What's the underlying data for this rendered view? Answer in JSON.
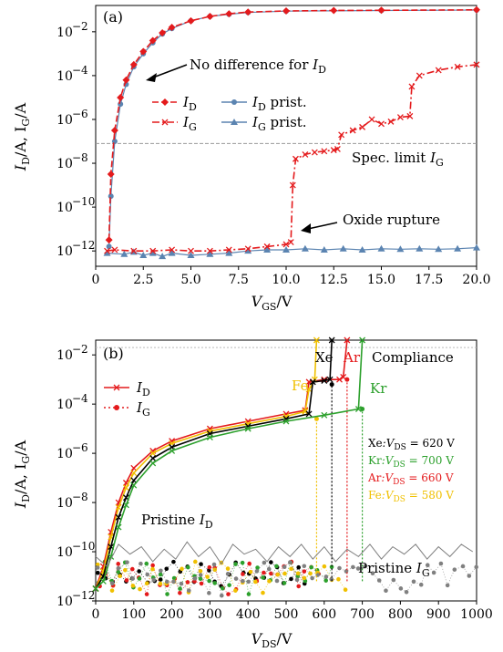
{
  "chart_data": [
    {
      "type": "line",
      "panel_label": "(a)",
      "ylog": true,
      "xlabel_main": "V",
      "xlabel_sub": "GS",
      "xlabel_unit": "/V",
      "ylabel_a": "I",
      "ylabel_a_sub": "D",
      "ylabel_b": "/A, I",
      "ylabel_b_sub": "G",
      "ylabel_c": "/A",
      "xlim": [
        0,
        20
      ],
      "ylim_exp": [
        -12.7,
        -0.8
      ],
      "xticks": [
        "0",
        "2.5",
        "5.0",
        "7.5",
        "10.0",
        "12.5",
        "15.0",
        "17.5",
        "20.0"
      ],
      "xtick_values": [
        0,
        2.5,
        5,
        7.5,
        10,
        12.5,
        15,
        17.5,
        20
      ],
      "ytick_exps": [
        -12,
        -10,
        -8,
        -6,
        -4,
        -2
      ],
      "ytick_labels": [
        "10",
        "10",
        "10",
        "10",
        "10",
        "10"
      ],
      "ytick_sups": [
        "−12",
        "−10",
        "−8",
        "−6",
        "−4",
        "−2"
      ],
      "legend": [
        {
          "main": "I",
          "sub": "D",
          "rest": "",
          "color": "#e41a1c",
          "marker": "diamond",
          "dash": "dash"
        },
        {
          "main": "I",
          "sub": "G",
          "rest": "",
          "color": "#e41a1c",
          "marker": "x",
          "dash": "dashdot"
        },
        {
          "main": "I",
          "sub": "D",
          "rest": " prist.",
          "color": "#5b84b1",
          "marker": "circle",
          "dash": "solid"
        },
        {
          "main": "I",
          "sub": "G",
          "rest": " prist.",
          "color": "#5b84b1",
          "marker": "triangle",
          "dash": "solid"
        }
      ],
      "annotations": {
        "no_diff": "No difference for ",
        "no_diff_i": "I",
        "no_diff_sub": "D",
        "spec": "Spec. limit ",
        "spec_i": "I",
        "spec_sub": "G",
        "oxide": "Oxide rupture"
      },
      "spec_limit_exp": -7.1,
      "series": [
        {
          "name": "ID",
          "log10_y": [
            [
              0.7,
              -11.5
            ],
            [
              0.8,
              -8.5
            ],
            [
              1.0,
              -6.5
            ],
            [
              1.3,
              -5.0
            ],
            [
              1.6,
              -4.2
            ],
            [
              2.0,
              -3.5
            ],
            [
              2.5,
              -2.9
            ],
            [
              3.0,
              -2.4
            ],
            [
              3.5,
              -2.05
            ],
            [
              4.0,
              -1.8
            ],
            [
              5.0,
              -1.5
            ],
            [
              6.0,
              -1.3
            ],
            [
              7.0,
              -1.18
            ],
            [
              8.0,
              -1.1
            ],
            [
              10.0,
              -1.05
            ],
            [
              12.5,
              -1.03
            ],
            [
              15.0,
              -1.02
            ],
            [
              20.0,
              -1.0
            ]
          ]
        },
        {
          "name": "IG",
          "log10_y": [
            [
              0.6,
              -12.0
            ],
            [
              1.0,
              -11.95
            ],
            [
              2.0,
              -12.0
            ],
            [
              3.0,
              -12.0
            ],
            [
              4.0,
              -11.95
            ],
            [
              5.0,
              -12.0
            ],
            [
              6.0,
              -12.0
            ],
            [
              7.0,
              -11.95
            ],
            [
              8.0,
              -11.9
            ],
            [
              9.0,
              -11.8
            ],
            [
              10.0,
              -11.7
            ],
            [
              10.25,
              -11.6
            ],
            [
              10.35,
              -9.0
            ],
            [
              10.5,
              -7.8
            ],
            [
              11.0,
              -7.6
            ],
            [
              11.5,
              -7.5
            ],
            [
              12.0,
              -7.45
            ],
            [
              12.5,
              -7.4
            ],
            [
              12.7,
              -7.35
            ],
            [
              12.9,
              -6.7
            ],
            [
              13.5,
              -6.5
            ],
            [
              14.0,
              -6.35
            ],
            [
              14.5,
              -6.0
            ],
            [
              15.0,
              -6.2
            ],
            [
              15.5,
              -6.1
            ],
            [
              16.0,
              -5.9
            ],
            [
              16.5,
              -5.85
            ],
            [
              16.6,
              -4.5
            ],
            [
              17.0,
              -4.0
            ],
            [
              18.0,
              -3.75
            ],
            [
              19.0,
              -3.6
            ],
            [
              20.0,
              -3.5
            ]
          ]
        },
        {
          "name": "ID prist.",
          "log10_y": [
            [
              0.7,
              -11.8
            ],
            [
              0.8,
              -9.5
            ],
            [
              1.0,
              -7.0
            ],
            [
              1.3,
              -5.3
            ],
            [
              1.6,
              -4.4
            ],
            [
              2.0,
              -3.6
            ],
            [
              2.5,
              -3.0
            ],
            [
              3.0,
              -2.5
            ],
            [
              3.5,
              -2.1
            ],
            [
              4.0,
              -1.85
            ],
            [
              5.0,
              -1.5
            ],
            [
              6.0,
              -1.3
            ],
            [
              7.0,
              -1.2
            ],
            [
              8.0,
              -1.12
            ],
            [
              10.0,
              -1.06
            ],
            [
              15.0,
              -1.03
            ],
            [
              20.0,
              -1.01
            ]
          ]
        },
        {
          "name": "IG prist.",
          "log10_y": [
            [
              0.6,
              -12.1
            ],
            [
              1.5,
              -12.15
            ],
            [
              2.0,
              -12.05
            ],
            [
              2.5,
              -12.2
            ],
            [
              3.0,
              -12.1
            ],
            [
              3.5,
              -12.25
            ],
            [
              4.0,
              -12.1
            ],
            [
              5.0,
              -12.2
            ],
            [
              6.0,
              -12.15
            ],
            [
              7.0,
              -12.1
            ],
            [
              8.0,
              -12.0
            ],
            [
              9.0,
              -11.95
            ],
            [
              10.0,
              -11.95
            ],
            [
              11.0,
              -11.9
            ],
            [
              12.0,
              -11.95
            ],
            [
              13.0,
              -11.9
            ],
            [
              14.0,
              -11.95
            ],
            [
              15.0,
              -11.9
            ],
            [
              16.0,
              -11.92
            ],
            [
              17.0,
              -11.9
            ],
            [
              18.0,
              -11.92
            ],
            [
              19.0,
              -11.9
            ],
            [
              20.0,
              -11.85
            ]
          ]
        }
      ]
    },
    {
      "type": "line",
      "panel_label": "(b)",
      "ylog": true,
      "xlabel_main": "V",
      "xlabel_sub": "DS",
      "xlabel_unit": "/V",
      "ylabel_a": "I",
      "ylabel_a_sub": "D",
      "ylabel_b": "/A, I",
      "ylabel_b_sub": "G",
      "ylabel_c": "/A",
      "xlim": [
        0,
        1000
      ],
      "ylim_exp": [
        -12,
        -1.4
      ],
      "xticks": [
        "0",
        "100",
        "200",
        "300",
        "400",
        "500",
        "600",
        "700",
        "800",
        "900",
        "1000"
      ],
      "xtick_values": [
        0,
        100,
        200,
        300,
        400,
        500,
        600,
        700,
        800,
        900,
        1000
      ],
      "ytick_exps": [
        -12,
        -10,
        -8,
        -6,
        -4,
        -2
      ],
      "ytick_labels": [
        "10",
        "10",
        "10",
        "10",
        "10",
        "10"
      ],
      "ytick_sups": [
        "−12",
        "−10",
        "−8",
        "−6",
        "−4",
        "−2"
      ],
      "compliance_exp": -1.7,
      "legend": [
        {
          "main": "I",
          "sub": "D",
          "color": "#e41a1c",
          "marker": "x",
          "dash": "solid"
        },
        {
          "main": "I",
          "sub": "G",
          "color": "#e41a1c",
          "marker": "circle",
          "dash": "dot"
        }
      ],
      "labels_top": {
        "xe": "Xe",
        "ar": "Ar",
        "compliance": "Compliance",
        "fe": "Fe",
        "kr": "Kr"
      },
      "breakdown_box": [
        {
          "gas": "Xe",
          "text": ":V",
          "sub": "DS",
          "value": " = 620 V",
          "color": "#000000"
        },
        {
          "gas": "Kr",
          "text": ":V",
          "sub": "DS",
          "value": " = 700 V",
          "color": "#2ca02c"
        },
        {
          "gas": "Ar",
          "text": ":V",
          "sub": "DS",
          "value": " = 660 V",
          "color": "#e41a1c"
        },
        {
          "gas": "Fe",
          "text": ":V",
          "sub": "DS",
          "value": " = 580 V",
          "color": "#f0c000"
        }
      ],
      "pristine_id": {
        "text": "Pristine ",
        "i": "I",
        "sub": "D"
      },
      "pristine_ig": {
        "text": "Pristine ",
        "i": "I",
        "sub": "G"
      },
      "series": [
        {
          "name": "Ar ID",
          "color": "#e41a1c",
          "log10_y": [
            [
              0,
              -11.5
            ],
            [
              20,
              -10.6
            ],
            [
              40,
              -9.2
            ],
            [
              60,
              -8.0
            ],
            [
              80,
              -7.2
            ],
            [
              100,
              -6.6
            ],
            [
              150,
              -5.9
            ],
            [
              200,
              -5.5
            ],
            [
              300,
              -5.0
            ],
            [
              400,
              -4.7
            ],
            [
              500,
              -4.4
            ],
            [
              550,
              -4.25
            ],
            [
              560,
              -3.1
            ],
            [
              600,
              -3.0
            ],
            [
              640,
              -3.0
            ],
            [
              650,
              -2.9
            ],
            [
              660,
              -1.2
            ]
          ]
        },
        {
          "name": "Fe ID",
          "color": "#f0c000",
          "log10_y": [
            [
              0,
              -11.5
            ],
            [
              20,
              -10.8
            ],
            [
              40,
              -9.4
            ],
            [
              60,
              -8.2
            ],
            [
              80,
              -7.4
            ],
            [
              100,
              -6.8
            ],
            [
              150,
              -6.0
            ],
            [
              200,
              -5.6
            ],
            [
              300,
              -5.1
            ],
            [
              400,
              -4.8
            ],
            [
              500,
              -4.5
            ],
            [
              550,
              -4.3
            ],
            [
              560,
              -3.4
            ],
            [
              575,
              -3.0
            ],
            [
              580,
              -1.0
            ]
          ]
        },
        {
          "name": "Xe ID",
          "color": "#000000",
          "log10_y": [
            [
              0,
              -11.5
            ],
            [
              20,
              -11.0
            ],
            [
              40,
              -9.8
            ],
            [
              60,
              -8.6
            ],
            [
              80,
              -7.8
            ],
            [
              100,
              -7.1
            ],
            [
              150,
              -6.2
            ],
            [
              200,
              -5.75
            ],
            [
              300,
              -5.2
            ],
            [
              400,
              -4.9
            ],
            [
              500,
              -4.6
            ],
            [
              560,
              -4.4
            ],
            [
              570,
              -3.1
            ],
            [
              600,
              -3.05
            ],
            [
              615,
              -3.0
            ],
            [
              620,
              -1.0
            ]
          ]
        },
        {
          "name": "Kr ID",
          "color": "#2ca02c",
          "log10_y": [
            [
              0,
              -11.5
            ],
            [
              20,
              -11.2
            ],
            [
              40,
              -10.2
            ],
            [
              60,
              -9.0
            ],
            [
              80,
              -8.1
            ],
            [
              100,
              -7.3
            ],
            [
              150,
              -6.4
            ],
            [
              200,
              -5.9
            ],
            [
              300,
              -5.35
            ],
            [
              400,
              -5.0
            ],
            [
              500,
              -4.7
            ],
            [
              600,
              -4.45
            ],
            [
              690,
              -4.2
            ],
            [
              700,
              -1.0
            ]
          ]
        },
        {
          "name": "Pristine ID",
          "color": "#808080",
          "log10_y": [
            [
              0,
              -10.2
            ],
            [
              30,
              -10.6
            ],
            [
              60,
              -9.7
            ],
            [
              90,
              -10.1
            ],
            [
              120,
              -9.8
            ],
            [
              150,
              -10.4
            ],
            [
              180,
              -9.9
            ],
            [
              210,
              -10.3
            ],
            [
              240,
              -9.6
            ],
            [
              270,
              -10.2
            ],
            [
              300,
              -9.8
            ],
            [
              330,
              -10.5
            ],
            [
              360,
              -9.7
            ],
            [
              390,
              -10.1
            ],
            [
              420,
              -9.9
            ],
            [
              450,
              -10.4
            ],
            [
              480,
              -9.8
            ],
            [
              510,
              -10.2
            ],
            [
              540,
              -9.7
            ],
            [
              570,
              -10.3
            ],
            [
              600,
              -9.8
            ],
            [
              630,
              -10.4
            ],
            [
              660,
              -9.9
            ],
            [
              690,
              -10.2
            ],
            [
              720,
              -9.7
            ],
            [
              750,
              -10.3
            ],
            [
              780,
              -9.8
            ],
            [
              810,
              -10.1
            ],
            [
              840,
              -9.7
            ],
            [
              870,
              -10.3
            ],
            [
              900,
              -9.8
            ],
            [
              930,
              -10.2
            ],
            [
              960,
              -9.7
            ],
            [
              990,
              -10.0
            ]
          ]
        }
      ]
    }
  ]
}
